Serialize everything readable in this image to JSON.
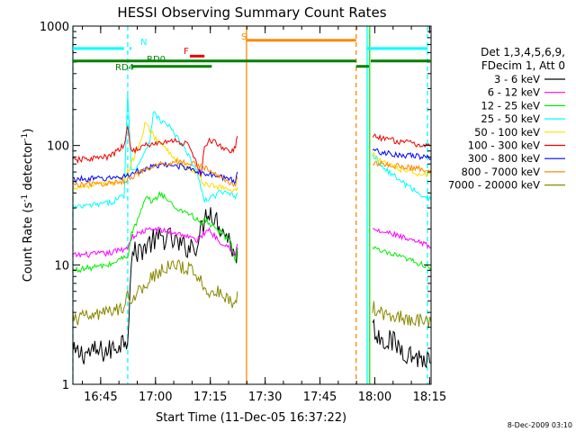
{
  "chart_data": {
    "type": "line",
    "title": "HESSI Observing Summary Count Rates",
    "xlabel": "Start Time (11-Dec-05 16:37:22)",
    "ylabel_main": "Count Rate (s",
    "ylabel_sup": "-1",
    "ylabel_rest": " detector",
    "ylabel_end": ")",
    "yscale": "log",
    "ylim": [
      1,
      1000
    ],
    "xlim_minutes": [
      0,
      98
    ],
    "y_ticks": [
      {
        "value": 1,
        "label": "1"
      },
      {
        "value": 10,
        "label": "10"
      },
      {
        "value": 100,
        "label": "100"
      },
      {
        "value": 1000,
        "label": "1000"
      }
    ],
    "x_ticks": [
      {
        "minute": 7.6,
        "label": "16:45"
      },
      {
        "minute": 22.6,
        "label": "17:00"
      },
      {
        "minute": 37.6,
        "label": "17:15"
      },
      {
        "minute": 52.6,
        "label": "17:30"
      },
      {
        "minute": 67.6,
        "label": "17:45"
      },
      {
        "minute": 82.6,
        "label": "18:00"
      },
      {
        "minute": 97.6,
        "label": "18:15"
      }
    ],
    "legend_header": [
      "Det 1,3,4,5,6,9,",
      "FDecim 1, Att 0"
    ],
    "series": [
      {
        "name": "3 - 6 keV",
        "color": "#000000",
        "segments": [
          {
            "x": [
              0,
              10,
              15,
              16,
              18,
              22,
              26,
              30,
              34,
              37,
              40,
              43,
              44.5,
              45
            ],
            "y": [
              1.8,
              1.9,
              2.5,
              12,
              13,
              16,
              17,
              14,
              15,
              30,
              22,
              16,
              11,
              14
            ]
          },
          {
            "x": [
              82,
              84,
              88,
              92,
              96,
              98
            ],
            "y": [
              3,
              2.5,
              2.2,
              1.8,
              1.6,
              1.5
            ]
          }
        ]
      },
      {
        "name": "6 - 12 keV",
        "color": "#ff00ff",
        "segments": [
          {
            "x": [
              0,
              10,
              15,
              16,
              19,
              22,
              26,
              30,
              34,
              37,
              40,
              43,
              44.5,
              45
            ],
            "y": [
              12,
              12.5,
              14,
              17,
              19,
              20,
              19,
              18,
              16,
              20,
              16,
              14,
              12,
              15
            ]
          },
          {
            "x": [
              82,
              84,
              88,
              92,
              96,
              98
            ],
            "y": [
              20,
              19,
              18,
              16,
              15,
              14
            ]
          }
        ]
      },
      {
        "name": "12 - 25 keV",
        "color": "#00ee00",
        "segments": [
          {
            "x": [
              0,
              10,
              15,
              16,
              18,
              20,
              22,
              24,
              28,
              32,
              35,
              36,
              40,
              43,
              44.5,
              45
            ],
            "y": [
              9,
              10,
              12,
              18,
              25,
              36,
              34,
              40,
              30,
              27,
              22,
              24,
              19,
              16,
              11,
              14
            ]
          },
          {
            "x": [
              82,
              84,
              88,
              92,
              96,
              98
            ],
            "y": [
              14,
              13,
              12,
              11,
              10,
              9.5
            ]
          }
        ]
      },
      {
        "name": "25 - 50 keV",
        "color": "#00ffff",
        "segments": [
          {
            "x": [
              0,
              10,
              14,
              15,
              16,
              18,
              21,
              22,
              24,
              26,
              30,
              34,
              36,
              40,
              43,
              44.5,
              45
            ],
            "y": [
              30,
              33,
              38,
              280,
              60,
              70,
              110,
              190,
              160,
              150,
              100,
              60,
              34,
              40,
              40,
              38,
              40
            ]
          },
          {
            "x": [
              82,
              84,
              88,
              92,
              96,
              98
            ],
            "y": [
              85,
              70,
              55,
              45,
              38,
              35
            ]
          }
        ]
      },
      {
        "name": "50 - 100 keV",
        "color": "#ffdd00",
        "segments": [
          {
            "x": [
              0,
              10,
              14,
              16,
              18,
              20,
              22,
              26,
              30,
              34,
              36,
              40,
              43,
              44.5,
              45
            ],
            "y": [
              45,
              48,
              52,
              70,
              100,
              160,
              120,
              90,
              70,
              58,
              48,
              45,
              42,
              42,
              45
            ]
          },
          {
            "x": [
              82,
              84,
              88,
              92,
              96,
              98
            ],
            "y": [
              85,
              75,
              65,
              60,
              58,
              57
            ]
          }
        ]
      },
      {
        "name": "100 - 300 keV",
        "color": "#ee0000",
        "segments": [
          {
            "x": [
              0,
              5,
              10,
              14,
              15,
              16,
              20,
              24,
              28,
              32,
              35,
              36,
              37,
              38,
              40,
              43,
              44.5,
              45
            ],
            "y": [
              75,
              78,
              80,
              100,
              140,
              90,
              100,
              105,
              110,
              100,
              55,
              95,
              110,
              110,
              100,
              90,
              95,
              120
            ]
          },
          {
            "x": [
              82,
              84,
              88,
              92,
              96,
              98
            ],
            "y": [
              120,
              115,
              110,
              105,
              100,
              100
            ]
          }
        ]
      },
      {
        "name": "300 - 800 keV",
        "color": "#0000ff",
        "segments": [
          {
            "x": [
              0,
              10,
              14,
              16,
              20,
              24,
              28,
              32,
              36,
              40,
              43,
              44.5,
              45
            ],
            "y": [
              52,
              53,
              55,
              58,
              64,
              68,
              68,
              65,
              58,
              55,
              52,
              50,
              60
            ]
          },
          {
            "x": [
              82,
              84,
              88,
              92,
              96,
              98
            ],
            "y": [
              95,
              88,
              85,
              82,
              80,
              78
            ]
          }
        ]
      },
      {
        "name": "800 - 7000 keV",
        "color": "#ff8800",
        "segments": [
          {
            "x": [
              0,
              10,
              14,
              16,
              20,
              24,
              28,
              32,
              36,
              40,
              43,
              44.5,
              45
            ],
            "y": [
              47,
              48,
              50,
              55,
              62,
              70,
              73,
              72,
              65,
              55,
              48,
              48,
              55
            ]
          },
          {
            "x": [
              82,
              84,
              88,
              92,
              96,
              98
            ],
            "y": [
              72,
              70,
              68,
              65,
              64,
              63
            ]
          }
        ]
      },
      {
        "name": "7000 - 20000 keV",
        "color": "#888800",
        "segments": [
          {
            "x": [
              0,
              10,
              14,
              15,
              16,
              20,
              24,
              28,
              32,
              35,
              36,
              40,
              43,
              44.5,
              45
            ],
            "y": [
              3.5,
              4,
              4.5,
              6,
              5,
              7,
              9,
              10,
              9,
              8,
              6,
              6,
              5,
              4.5,
              6
            ]
          },
          {
            "x": [
              82,
              84,
              88,
              92,
              96,
              98
            ],
            "y": [
              4.5,
              4,
              3.8,
              3.5,
              3.4,
              3.3
            ]
          }
        ]
      }
    ],
    "vertical_markers": [
      {
        "minute": 0,
        "color": "#00ffff",
        "style": "dashed"
      },
      {
        "minute": 15,
        "color": "#00ffff",
        "style": "dashed"
      },
      {
        "minute": 47.5,
        "color": "#ff8800",
        "style": "solid"
      },
      {
        "minute": 77.5,
        "color": "#ff8800",
        "style": "dashed"
      },
      {
        "minute": 80.5,
        "color": "#00ffff",
        "style": "solid"
      },
      {
        "minute": 81.2,
        "color": "#00ee00",
        "style": "solid"
      },
      {
        "minute": 97,
        "color": "#00ffff",
        "style": "dashed"
      }
    ],
    "flag_bars": [
      {
        "label": "N",
        "color": "#00ffff",
        "y": 650,
        "segments": [
          [
            0,
            14
          ],
          [
            15.5,
            16
          ],
          [
            80.5,
            97
          ]
        ]
      },
      {
        "label": "S",
        "color": "#ff8800",
        "y": 760,
        "segments": [
          [
            47.5,
            77.5
          ]
        ]
      },
      {
        "label": "F",
        "color": "#ee0000",
        "y": 560,
        "segments": [
          [
            32,
            36
          ]
        ]
      },
      {
        "label": "RD0",
        "color": "#008000",
        "y": 510,
        "segments": [
          [
            0,
            77.5
          ],
          [
            81.5,
            98
          ]
        ]
      },
      {
        "label": "RD4",
        "color": "#008000",
        "y": 460,
        "segments": [
          [
            16,
            38
          ],
          [
            77.5,
            81
          ]
        ]
      }
    ],
    "footer": "8-Dec-2009 03:10"
  }
}
